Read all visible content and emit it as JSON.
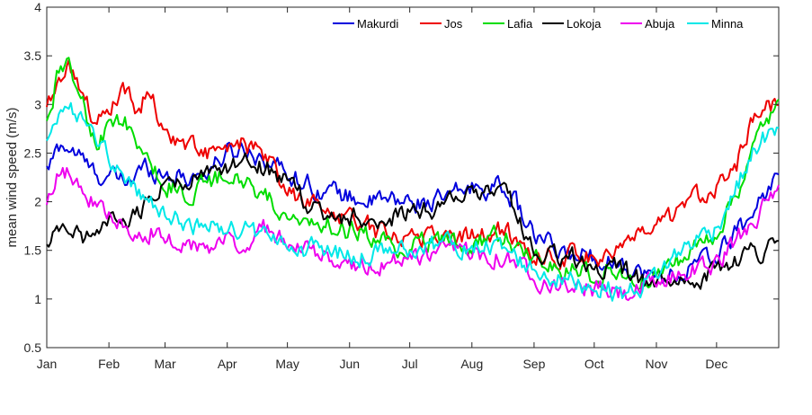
{
  "chart_data": {
    "type": "line",
    "title": "",
    "xlabel": "",
    "ylabel": "mean wind speed (m/s)",
    "xlim": [
      1,
      366
    ],
    "ylim": [
      0.5,
      4
    ],
    "yticks": [
      0.5,
      1,
      1.5,
      2,
      2.5,
      3,
      3.5,
      4
    ],
    "ytick_labels": [
      "0.5",
      "1",
      "1.5",
      "2",
      "2.5",
      "3",
      "3.5",
      "4"
    ],
    "month_ticks": [
      1,
      32,
      60,
      91,
      121,
      152,
      182,
      213,
      244,
      274,
      305,
      335
    ],
    "month_labels": [
      "Jan",
      "Feb",
      "Mar",
      "Apr",
      "May",
      "Jun",
      "Jul",
      "Aug",
      "Sep",
      "Oct",
      "Nov",
      "Dec"
    ],
    "legend_position": "top-right",
    "grid": false,
    "noise_amplitude": 0.09,
    "series": [
      {
        "name": "Makurdi",
        "color": "#0000dd",
        "x": [
          1,
          8,
          16,
          24,
          32,
          40,
          50,
          60,
          70,
          80,
          91,
          100,
          110,
          121,
          135,
          152,
          165,
          182,
          197,
          213,
          230,
          244,
          258,
          274,
          290,
          305,
          320,
          335,
          350,
          358,
          366
        ],
        "y": [
          2.3,
          2.6,
          2.5,
          2.3,
          2.25,
          2.2,
          2.35,
          2.3,
          2.25,
          2.3,
          2.5,
          2.55,
          2.45,
          2.3,
          2.15,
          2.05,
          2.0,
          2.0,
          2.0,
          2.15,
          2.15,
          1.65,
          1.45,
          1.45,
          1.35,
          1.2,
          1.3,
          1.45,
          1.8,
          2.05,
          2.3
        ]
      },
      {
        "name": "Jos",
        "color": "#ee0000",
        "x": [
          1,
          6,
          12,
          20,
          26,
          32,
          38,
          46,
          52,
          60,
          70,
          80,
          91,
          100,
          110,
          121,
          135,
          152,
          165,
          182,
          197,
          213,
          230,
          244,
          258,
          274,
          290,
          305,
          320,
          335,
          345,
          352,
          358,
          366
        ],
        "y": [
          2.9,
          3.3,
          3.45,
          3.05,
          2.75,
          2.95,
          3.2,
          2.95,
          3.15,
          2.7,
          2.6,
          2.5,
          2.5,
          2.6,
          2.45,
          2.1,
          1.95,
          1.85,
          1.7,
          1.65,
          1.65,
          1.65,
          1.7,
          1.45,
          1.45,
          1.45,
          1.55,
          1.7,
          1.95,
          2.2,
          2.4,
          2.75,
          3.0,
          3.0
        ]
      },
      {
        "name": "Lafia",
        "color": "#00dd00",
        "x": [
          1,
          6,
          12,
          20,
          26,
          32,
          40,
          50,
          60,
          70,
          80,
          91,
          100,
          110,
          121,
          135,
          152,
          165,
          182,
          197,
          213,
          230,
          244,
          258,
          274,
          290,
          305,
          320,
          335,
          345,
          352,
          358,
          366
        ],
        "y": [
          2.75,
          3.25,
          3.4,
          2.95,
          2.6,
          2.75,
          2.85,
          2.4,
          2.2,
          2.1,
          2.15,
          2.3,
          2.2,
          2.05,
          1.9,
          1.8,
          1.7,
          1.6,
          1.55,
          1.6,
          1.6,
          1.65,
          1.4,
          1.3,
          1.25,
          1.25,
          1.25,
          1.45,
          1.7,
          2.1,
          2.45,
          2.8,
          2.95
        ]
      },
      {
        "name": "Lokoja",
        "color": "#000000",
        "x": [
          1,
          10,
          20,
          30,
          40,
          50,
          60,
          70,
          80,
          91,
          100,
          110,
          121,
          135,
          152,
          165,
          182,
          197,
          213,
          230,
          244,
          258,
          274,
          290,
          305,
          320,
          335,
          350,
          358,
          366
        ],
        "y": [
          1.65,
          1.75,
          1.6,
          1.75,
          1.8,
          1.95,
          2.15,
          2.2,
          2.25,
          2.35,
          2.4,
          2.35,
          2.2,
          1.9,
          1.85,
          1.8,
          1.9,
          1.95,
          2.1,
          2.05,
          1.55,
          1.45,
          1.35,
          1.25,
          1.15,
          1.2,
          1.3,
          1.45,
          1.5,
          1.55
        ]
      },
      {
        "name": "Abuja",
        "color": "#ee00ee",
        "x": [
          1,
          6,
          12,
          20,
          32,
          45,
          60,
          70,
          80,
          91,
          100,
          110,
          121,
          135,
          152,
          165,
          182,
          197,
          213,
          230,
          244,
          258,
          274,
          290,
          305,
          320,
          335,
          345,
          352,
          358,
          366
        ],
        "y": [
          2.05,
          2.25,
          2.3,
          2.05,
          1.85,
          1.75,
          1.7,
          1.55,
          1.55,
          1.6,
          1.6,
          1.7,
          1.55,
          1.45,
          1.35,
          1.35,
          1.4,
          1.45,
          1.5,
          1.45,
          1.25,
          1.15,
          1.1,
          1.05,
          1.15,
          1.3,
          1.35,
          1.6,
          1.8,
          1.95,
          2.05
        ]
      },
      {
        "name": "Minna",
        "color": "#00e8e8",
        "x": [
          1,
          6,
          12,
          20,
          32,
          45,
          60,
          70,
          80,
          91,
          100,
          110,
          121,
          135,
          152,
          165,
          182,
          197,
          213,
          230,
          244,
          258,
          274,
          290,
          305,
          320,
          335,
          345,
          352,
          358,
          366
        ],
        "y": [
          2.7,
          2.9,
          3.0,
          2.75,
          2.45,
          2.15,
          1.85,
          1.8,
          1.75,
          1.75,
          1.7,
          1.65,
          1.55,
          1.5,
          1.45,
          1.45,
          1.5,
          1.55,
          1.55,
          1.5,
          1.3,
          1.2,
          1.15,
          1.05,
          1.25,
          1.55,
          1.75,
          2.15,
          2.45,
          2.65,
          2.7
        ]
      }
    ]
  }
}
